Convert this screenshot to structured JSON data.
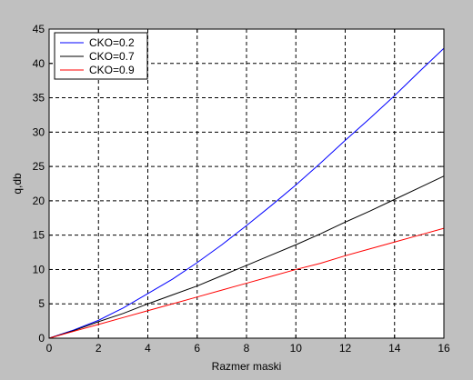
{
  "chart_data": {
    "type": "line",
    "xlabel": "Razmer maski",
    "ylabel": "q,db",
    "xlim": [
      0,
      16
    ],
    "ylim": [
      0,
      45
    ],
    "xticks": [
      0,
      2,
      4,
      6,
      8,
      10,
      12,
      14,
      16
    ],
    "yticks": [
      0,
      5,
      10,
      15,
      20,
      25,
      30,
      35,
      40,
      45
    ],
    "grid": true,
    "legend_position": "top-left",
    "series": [
      {
        "name": "CKO=0.2",
        "color": "#0000ff",
        "x": [
          0,
          1,
          2,
          3,
          4,
          5,
          6,
          7,
          8,
          9,
          10,
          11,
          12,
          13,
          14,
          15,
          16
        ],
        "y": [
          0,
          1.2,
          2.6,
          4.4,
          6.5,
          8.6,
          11.0,
          13.6,
          16.4,
          19.3,
          22.3,
          25.5,
          28.8,
          32.0,
          35.3,
          38.8,
          42.2
        ]
      },
      {
        "name": "CKO=0.7",
        "color": "#000000",
        "x": [
          0,
          1,
          2,
          3,
          4,
          5,
          6,
          7,
          8,
          9,
          10,
          11,
          12,
          13,
          14,
          15,
          16
        ],
        "y": [
          0,
          1.1,
          2.4,
          3.6,
          5.0,
          6.3,
          7.6,
          9.1,
          10.6,
          12.1,
          13.6,
          15.2,
          16.9,
          18.5,
          20.2,
          21.9,
          23.6
        ]
      },
      {
        "name": "CKO=0.9",
        "color": "#ff0000",
        "x": [
          0,
          1,
          2,
          3,
          4,
          5,
          6,
          7,
          8,
          9,
          10,
          11,
          12,
          13,
          14,
          15,
          16
        ],
        "y": [
          0,
          1.0,
          2.0,
          3.0,
          4.0,
          5.0,
          6.0,
          7.0,
          8.0,
          9.0,
          10.0,
          10.9,
          12.0,
          13.0,
          14.0,
          15.0,
          16.0
        ]
      }
    ]
  }
}
